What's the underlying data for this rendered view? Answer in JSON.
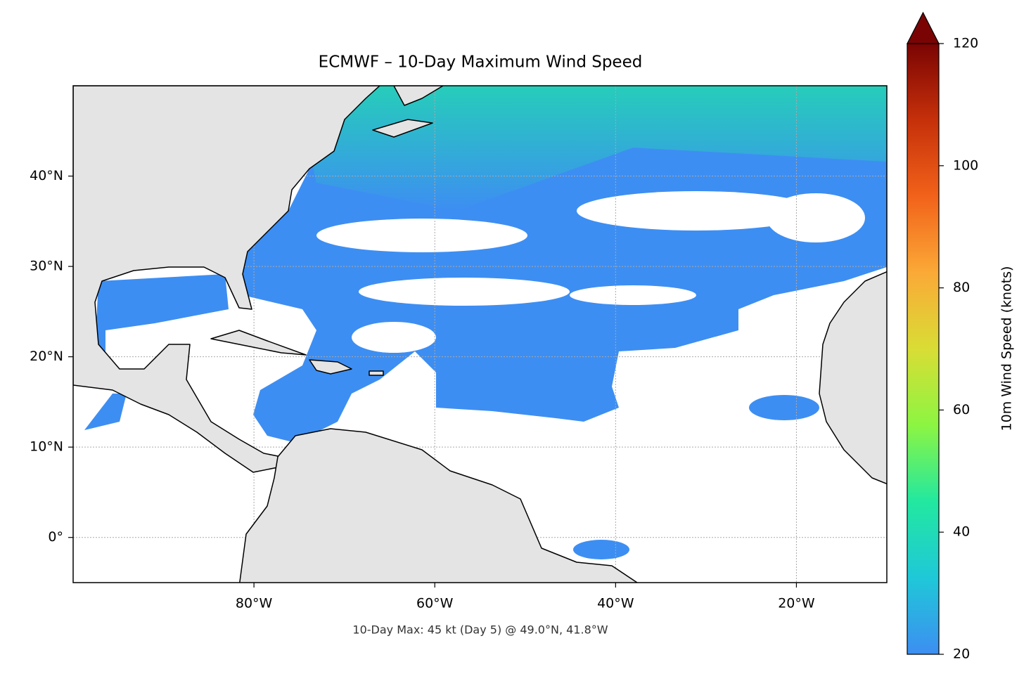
{
  "chart_data": {
    "type": "map",
    "title": "ECMWF – 10-Day Maximum Wind Speed",
    "annotation": "10-Day Max: 45 kt (Day 5) @ 49.0°N, 41.8°W",
    "xlim": [
      -100,
      -10
    ],
    "ylim": [
      -5,
      50
    ],
    "xticks": [
      {
        "value": -80,
        "label": "80°W"
      },
      {
        "value": -60,
        "label": "60°W"
      },
      {
        "value": -40,
        "label": "40°W"
      },
      {
        "value": -20,
        "label": "20°W"
      }
    ],
    "yticks": [
      {
        "value": 0,
        "label": "0°"
      },
      {
        "value": 10,
        "label": "10°N"
      },
      {
        "value": 20,
        "label": "20°N"
      },
      {
        "value": 30,
        "label": "30°N"
      },
      {
        "value": 40,
        "label": "40°N"
      }
    ],
    "grid": true,
    "colorbar": {
      "label": "10m Wind Speed (knots)",
      "lim": [
        20,
        120
      ],
      "ticks": [
        20,
        40,
        60,
        80,
        100,
        120
      ],
      "extend": "max",
      "colors": [
        "#3d8ef2",
        "#1fc8d8",
        "#22e8a0",
        "#8cf542",
        "#d9dd35",
        "#fba937",
        "#f2621a",
        "#c6300a",
        "#7a0403"
      ]
    }
  }
}
